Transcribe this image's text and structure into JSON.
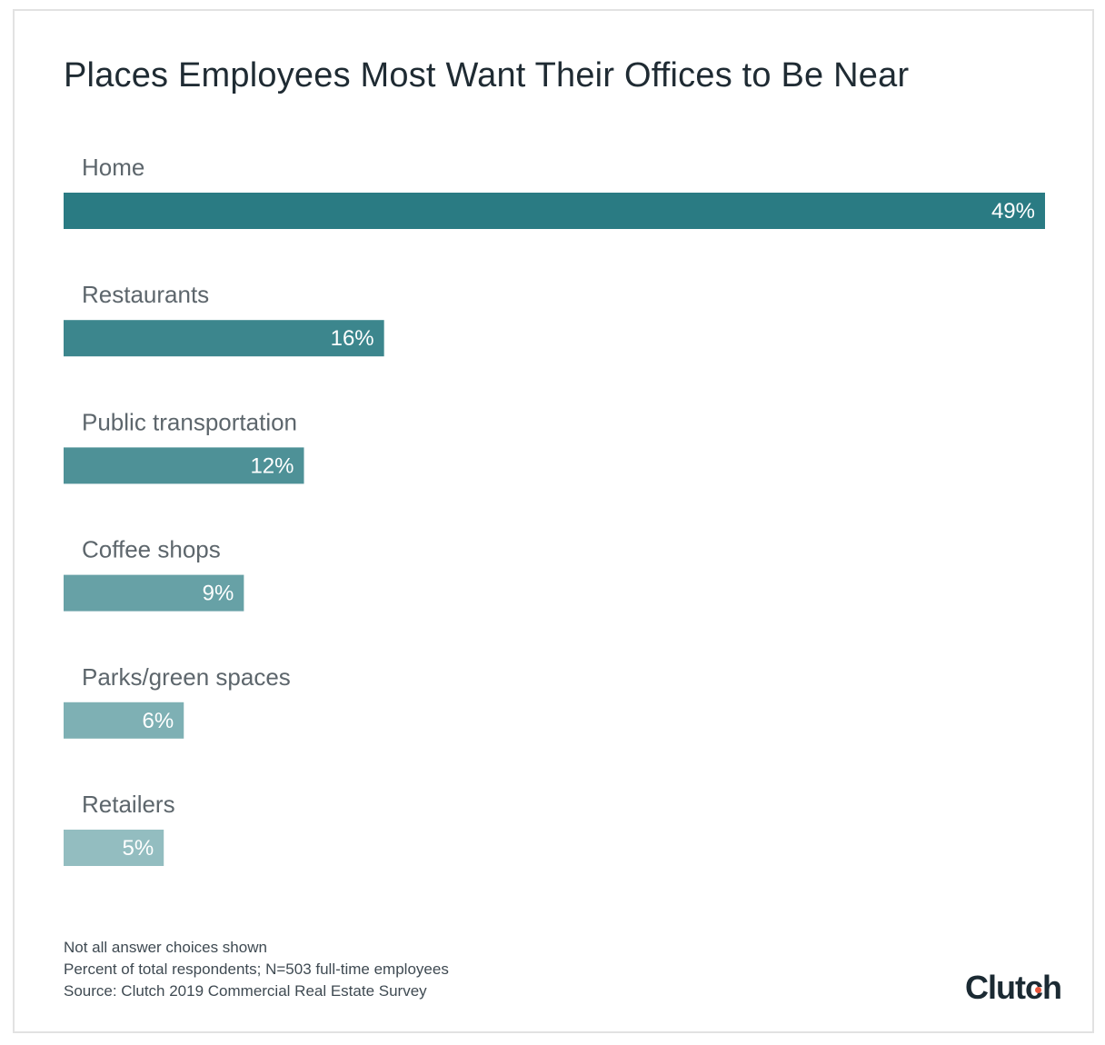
{
  "chart_data": {
    "type": "bar",
    "orientation": "horizontal",
    "title": "Places Employees Most Want Their Offices to Be Near",
    "categories": [
      "Home",
      "Restaurants",
      "Public transportation",
      "Coffee shops",
      "Parks/green spaces",
      "Retailers"
    ],
    "values": [
      49,
      16,
      12,
      9,
      6,
      5
    ],
    "value_labels": [
      "49%",
      "16%",
      "12%",
      "9%",
      "6%",
      "5%"
    ],
    "unit": "%",
    "xlim": [
      0,
      49
    ],
    "grid": false,
    "legend": "none",
    "colors": [
      "#2a7b83",
      "#3c868d",
      "#4e9197",
      "#67a1a6",
      "#7eb0b4",
      "#93bdc0"
    ]
  },
  "notes": [
    "Not all answer choices shown",
    "Percent of total respondents; N=503 full-time employees",
    "Source: Clutch 2019 Commercial Real Estate Survey"
  ],
  "brand": {
    "logo_text": "Clutch",
    "accent_color": "#e8553b"
  }
}
